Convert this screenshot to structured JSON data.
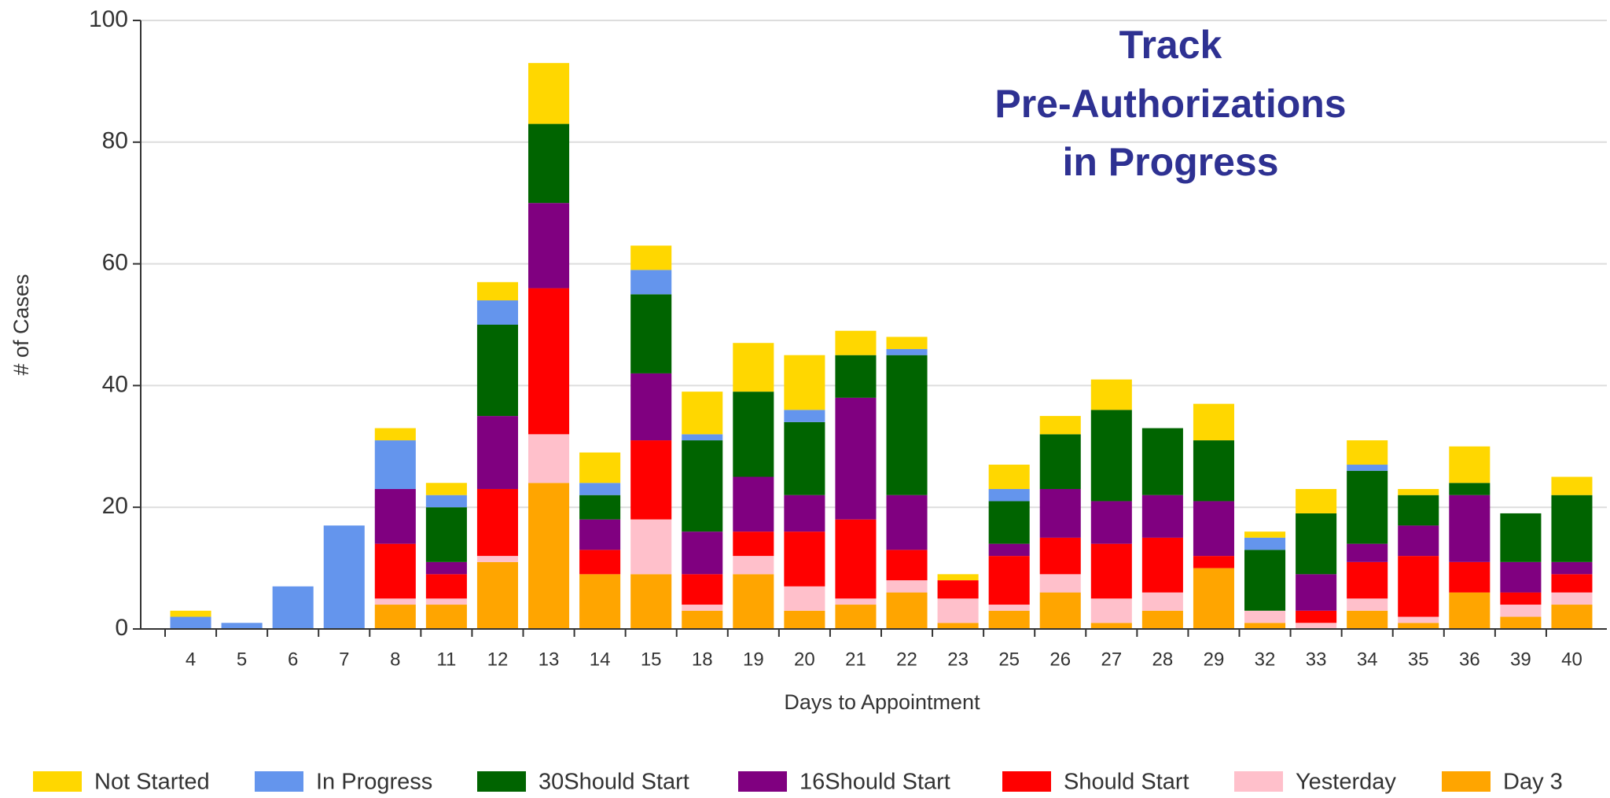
{
  "chart_data": {
    "type": "stacked_bar",
    "title": [
      "Track",
      "Pre-Authorizations",
      "in Progress"
    ],
    "x_label": "Days to Appointment",
    "y_label": "# of Cases",
    "categories": [
      "4",
      "5",
      "6",
      "7",
      "8",
      "11",
      "12",
      "13",
      "14",
      "15",
      "18",
      "19",
      "20",
      "21",
      "22",
      "23",
      "25",
      "26",
      "27",
      "28",
      "29",
      "32",
      "33",
      "34",
      "35",
      "36",
      "39",
      "40"
    ],
    "series": [
      {
        "name": "Not Started",
        "color": "#ffd700",
        "values": [
          1,
          0,
          0,
          0,
          2,
          2,
          3,
          10,
          5,
          4,
          7,
          8,
          9,
          4,
          2,
          1,
          4,
          3,
          5,
          0,
          6,
          1,
          4,
          4,
          1,
          6,
          0,
          3
        ]
      },
      {
        "name": "In Progress",
        "color": "#6495ed",
        "values": [
          2,
          1,
          7,
          17,
          8,
          2,
          4,
          0,
          2,
          4,
          1,
          0,
          2,
          0,
          1,
          0,
          2,
          0,
          0,
          0,
          0,
          2,
          0,
          1,
          0,
          0,
          0,
          0
        ]
      },
      {
        "name": "30Should Start",
        "color": "#006400",
        "values": [
          0,
          0,
          0,
          0,
          0,
          9,
          15,
          13,
          4,
          13,
          15,
          14,
          12,
          7,
          23,
          0,
          7,
          9,
          15,
          11,
          10,
          10,
          10,
          12,
          5,
          2,
          8,
          11
        ]
      },
      {
        "name": "16Should Start",
        "color": "#800080",
        "values": [
          0,
          0,
          0,
          0,
          9,
          2,
          12,
          14,
          5,
          11,
          7,
          9,
          6,
          20,
          9,
          0,
          2,
          8,
          7,
          7,
          9,
          0,
          6,
          3,
          5,
          11,
          5,
          2
        ]
      },
      {
        "name": "Should Start",
        "color": "#ff0000",
        "values": [
          0,
          0,
          0,
          0,
          9,
          4,
          11,
          24,
          4,
          13,
          5,
          4,
          9,
          13,
          5,
          3,
          8,
          6,
          9,
          9,
          2,
          0,
          2,
          6,
          10,
          5,
          2,
          3
        ]
      },
      {
        "name": "Yesterday",
        "color": "#ffc0cb",
        "values": [
          0,
          0,
          0,
          0,
          1,
          1,
          1,
          8,
          0,
          9,
          1,
          3,
          4,
          1,
          2,
          4,
          1,
          3,
          4,
          3,
          0,
          2,
          1,
          2,
          1,
          0,
          2,
          2
        ]
      },
      {
        "name": "Day 3",
        "color": "#ffa500",
        "values": [
          0,
          0,
          0,
          0,
          4,
          4,
          11,
          24,
          9,
          9,
          3,
          9,
          3,
          4,
          6,
          1,
          3,
          6,
          1,
          3,
          10,
          1,
          0,
          3,
          1,
          6,
          2,
          4
        ]
      }
    ],
    "ylim": [
      0,
      100
    ],
    "yticks": [
      0,
      20,
      40,
      60,
      80,
      100
    ],
    "grid": true,
    "legend": "bottom"
  }
}
